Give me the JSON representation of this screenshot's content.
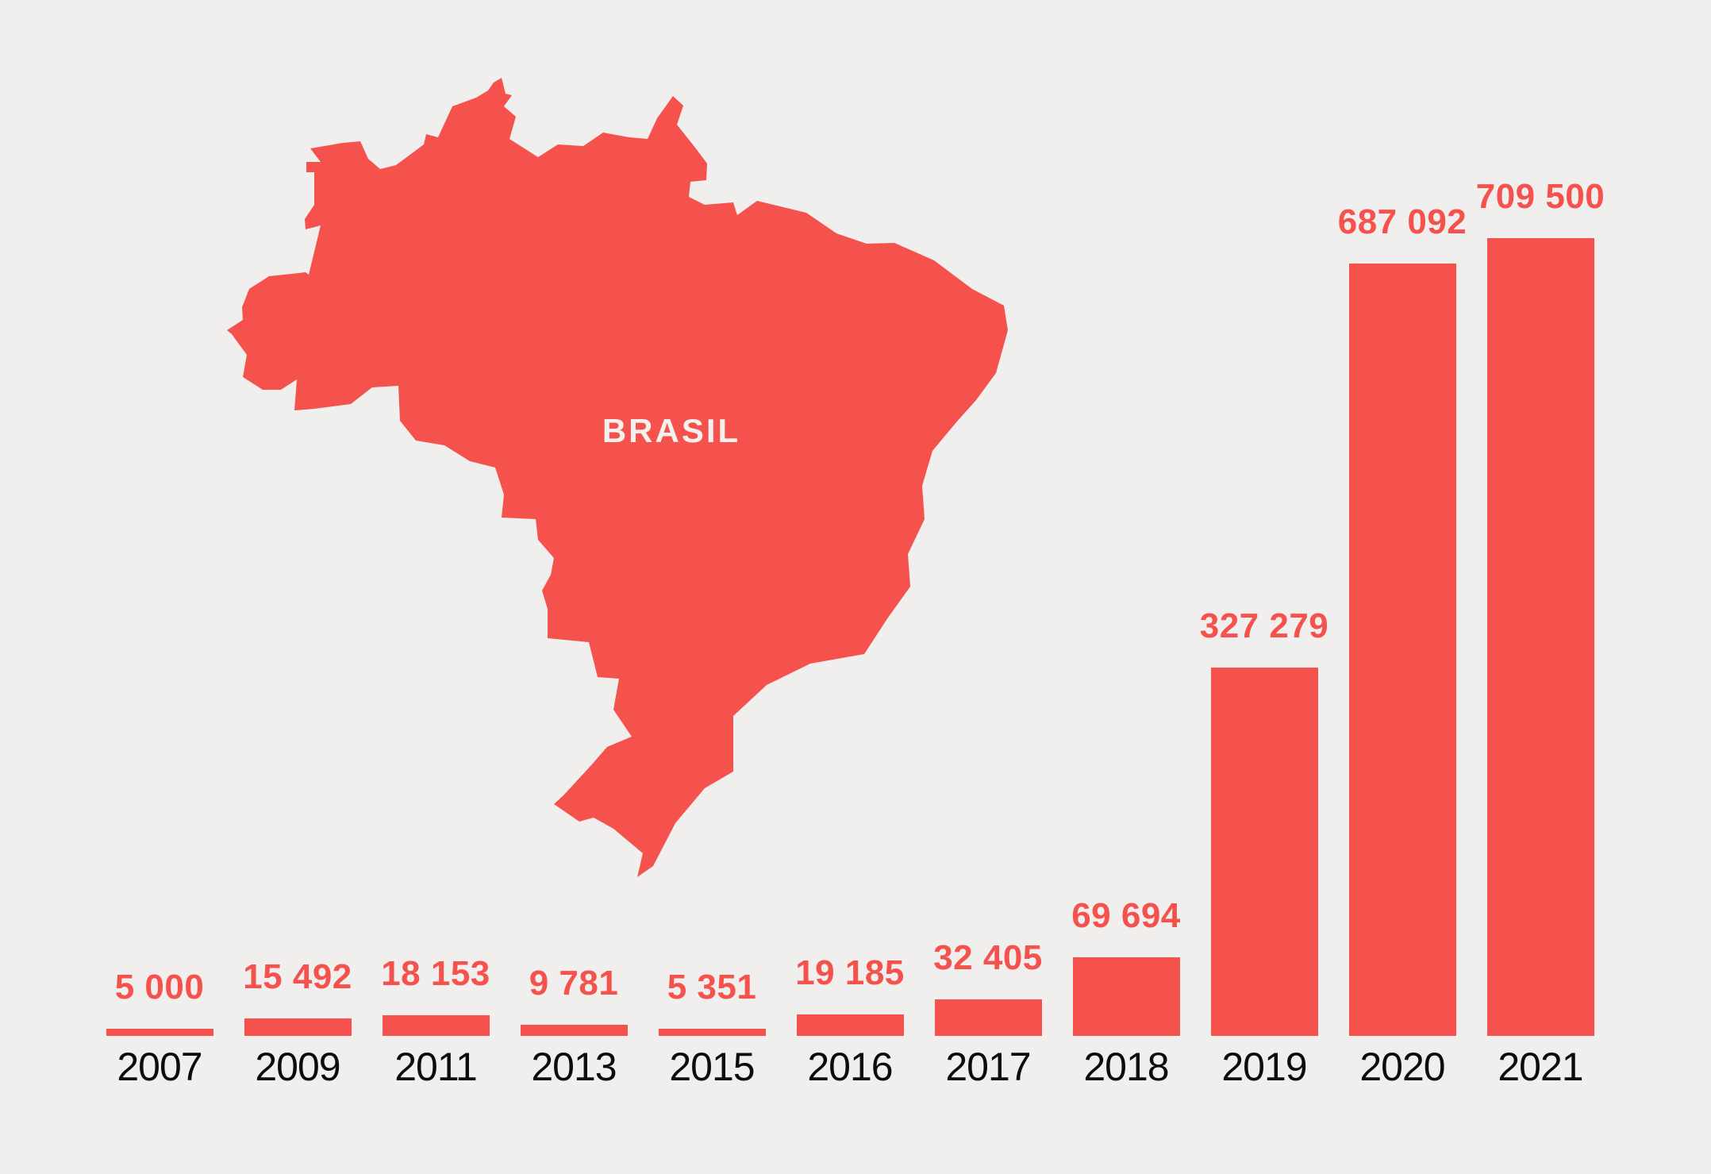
{
  "page": {
    "background": "#f0efed"
  },
  "map": {
    "label": "BRASIL",
    "fill": "#f5524e",
    "label_color": "#f2f1ee"
  },
  "chart_data": {
    "type": "bar",
    "title": "",
    "xlabel": "",
    "ylabel": "",
    "categories": [
      "2007",
      "2009",
      "2011",
      "2013",
      "2015",
      "2016",
      "2017",
      "2018",
      "2019",
      "2020",
      "2021"
    ],
    "values": [
      5000,
      15492,
      18153,
      9781,
      5351,
      19185,
      32405,
      69694,
      327279,
      687092,
      709500
    ],
    "value_labels": [
      "5 000",
      "15 492",
      "18 153",
      "9 781",
      "5 351",
      "19 185",
      "32 405",
      "69 694",
      "327 279",
      "687 092",
      "709 500"
    ],
    "ylim": [
      0,
      709500
    ],
    "grid": false,
    "legend": false,
    "bar_color": "#f5524e",
    "value_label_color": "#f5524e",
    "axis_label_color": "#0c0c0c"
  }
}
